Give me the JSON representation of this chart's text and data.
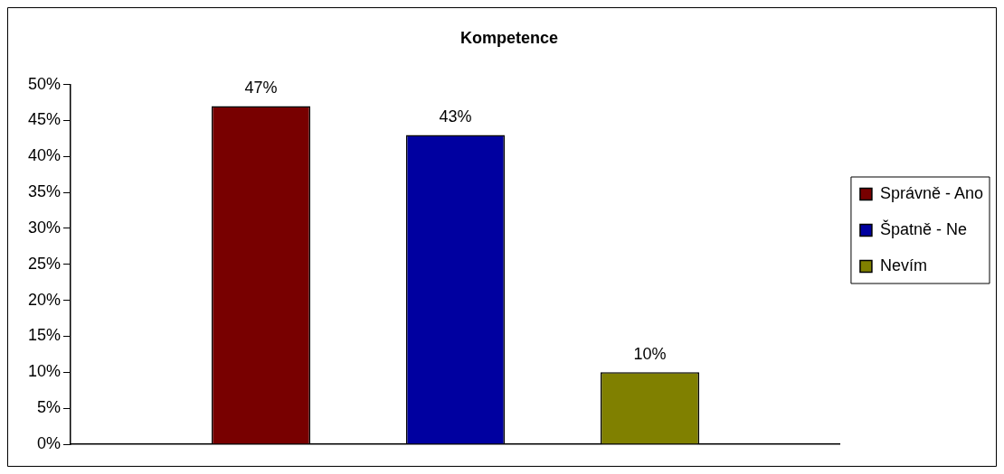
{
  "chart_data": {
    "type": "bar",
    "title": "Kompetence",
    "categories": [
      null
    ],
    "series": [
      {
        "name": "Správně - Ano",
        "color": "#780000",
        "values": [
          47
        ],
        "value_labels": [
          "47%"
        ]
      },
      {
        "name": "Špatně - Ne",
        "color": "#0000a0",
        "values": [
          43
        ],
        "value_labels": [
          "43%"
        ]
      },
      {
        "name": "Nevím",
        "color": "#808000",
        "values": [
          10
        ],
        "value_labels": [
          "10%"
        ]
      }
    ],
    "ylim": [
      0,
      50
    ],
    "yticks": [
      {
        "value": 0,
        "label": "0%"
      },
      {
        "value": 5,
        "label": "5%"
      },
      {
        "value": 10,
        "label": "10%"
      },
      {
        "value": 15,
        "label": "15%"
      },
      {
        "value": 20,
        "label": "20%"
      },
      {
        "value": 25,
        "label": "25%"
      },
      {
        "value": 30,
        "label": "30%"
      },
      {
        "value": 35,
        "label": "35%"
      },
      {
        "value": 40,
        "label": "40%"
      },
      {
        "value": 45,
        "label": "45%"
      },
      {
        "value": 50,
        "label": "50%"
      }
    ],
    "grid": false,
    "legend": "right",
    "tick_labels": "y"
  }
}
